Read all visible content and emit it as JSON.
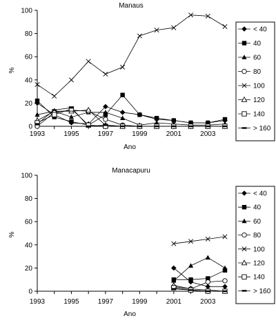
{
  "chart_data": [
    {
      "type": "line",
      "title": "Manaus",
      "xlabel": "Ano",
      "ylabel": "%",
      "xlim": [
        1993,
        2004
      ],
      "ylim": [
        0,
        100
      ],
      "xticks": [
        1993,
        1995,
        1997,
        1999,
        2001,
        2003
      ],
      "yticks": [
        0,
        20,
        40,
        60,
        80,
        100
      ],
      "legend": "right",
      "series": [
        {
          "name": "< 40",
          "marker": "diamond",
          "x": [
            1993,
            1994,
            1995,
            1996,
            1997,
            1998,
            1999,
            2000,
            2001,
            2002,
            2003,
            2004
          ],
          "y": [
            20,
            10,
            3,
            2,
            17,
            12,
            10,
            6,
            5,
            3,
            3,
            5
          ]
        },
        {
          "name": "40",
          "marker": "square-filled",
          "x": [
            1993,
            1994,
            1995,
            1996,
            1997,
            1998,
            1999,
            2000,
            2001,
            2002,
            2003,
            2004
          ],
          "y": [
            22,
            8,
            4,
            1,
            10,
            27,
            10,
            7,
            5,
            3,
            3,
            6
          ]
        },
        {
          "name": "60",
          "marker": "triangle-filled",
          "x": [
            1993,
            1994,
            1995,
            1996,
            1997,
            1998,
            1999,
            2000,
            2001,
            2002,
            2003,
            2004
          ],
          "y": [
            10,
            13,
            8,
            12,
            12,
            7,
            1,
            3,
            2,
            1,
            1,
            2
          ]
        },
        {
          "name": "80",
          "marker": "circle-open",
          "x": [
            1993,
            1994,
            1995,
            1996,
            1997,
            1998,
            1999,
            2000,
            2001,
            2002,
            2003,
            2004
          ],
          "y": [
            0,
            12,
            14,
            13,
            6,
            1,
            0,
            0,
            0,
            0,
            0,
            0
          ]
        },
        {
          "name": "100",
          "marker": "x",
          "x": [
            1993,
            1994,
            1995,
            1996,
            1997,
            1998,
            1999,
            2000,
            2001,
            2002,
            2003,
            2004
          ],
          "y": [
            36,
            26,
            40,
            56,
            45,
            51,
            78,
            83,
            85,
            96,
            95,
            86
          ]
        },
        {
          "name": "120",
          "marker": "triangle-open",
          "x": [
            1993,
            1994,
            1995,
            1996,
            1997,
            1998,
            1999,
            2000,
            2001,
            2002,
            2003,
            2004
          ],
          "y": [
            5,
            13,
            13,
            14,
            1,
            0,
            0,
            0,
            0,
            0,
            0,
            0
          ]
        },
        {
          "name": "140",
          "marker": "square-open",
          "x": [
            1993,
            1994,
            1995,
            1996,
            1997,
            1998,
            1999,
            2000,
            2001,
            2002,
            2003,
            2004
          ],
          "y": [
            3,
            10,
            15,
            1,
            0,
            0,
            0,
            0,
            0,
            0,
            0,
            0
          ]
        },
        {
          "name": "> 160",
          "marker": "dash",
          "x": [
            1993,
            1994,
            1995,
            1996,
            1997,
            1998,
            1999,
            2000,
            2001,
            2002,
            2003,
            2004
          ],
          "y": [
            2,
            14,
            16,
            0,
            1,
            0,
            0,
            0,
            0,
            0,
            0,
            0
          ]
        }
      ]
    },
    {
      "type": "line",
      "title": "Manacapuru",
      "xlabel": "Ano",
      "ylabel": "%",
      "xlim": [
        1993,
        2004
      ],
      "ylim": [
        0,
        100
      ],
      "xticks": [
        1993,
        1995,
        1997,
        1999,
        2001,
        2003
      ],
      "yticks": [
        0,
        20,
        40,
        60,
        80,
        100
      ],
      "legend": "right",
      "series": [
        {
          "name": "< 40",
          "marker": "diamond",
          "x": [
            2001,
            2002,
            2003,
            2004
          ],
          "y": [
            20,
            8,
            4,
            4
          ]
        },
        {
          "name": "40",
          "marker": "square-filled",
          "x": [
            2001,
            2002,
            2003,
            2004
          ],
          "y": [
            10,
            10,
            11,
            18
          ]
        },
        {
          "name": "60",
          "marker": "triangle-filled",
          "x": [
            2001,
            2002,
            2003,
            2004
          ],
          "y": [
            9,
            22,
            29,
            20
          ]
        },
        {
          "name": "80",
          "marker": "circle-open",
          "x": [
            2001,
            2002,
            2003,
            2004
          ],
          "y": [
            4,
            2,
            8,
            9
          ]
        },
        {
          "name": "100",
          "marker": "x",
          "x": [
            2001,
            2002,
            2003,
            2004
          ],
          "y": [
            41,
            43,
            45,
            47
          ]
        },
        {
          "name": "120",
          "marker": "triangle-open",
          "x": [
            2001,
            2002,
            2003,
            2004
          ],
          "y": [
            5,
            2,
            1,
            0
          ]
        },
        {
          "name": "140",
          "marker": "square-open",
          "x": [
            2001,
            2002,
            2003,
            2004
          ],
          "y": [
            3,
            1,
            0,
            0
          ]
        },
        {
          "name": "> 160",
          "marker": "dash",
          "x": [
            2001,
            2002,
            2003,
            2004
          ],
          "y": [
            2,
            1,
            0,
            0
          ]
        }
      ]
    }
  ]
}
